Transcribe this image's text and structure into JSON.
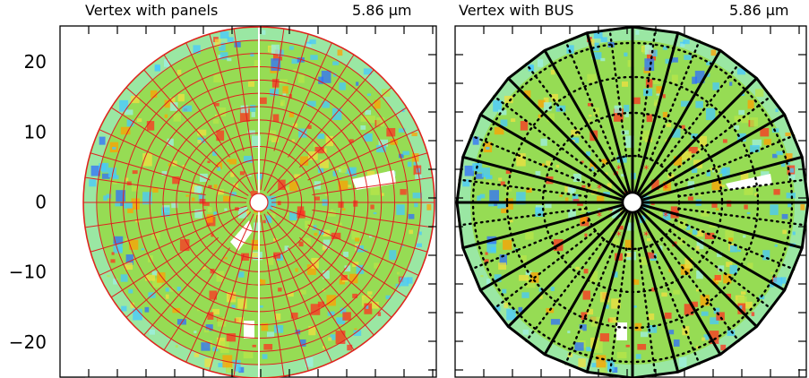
{
  "chart_data": [
    {
      "type": "heatmap",
      "title": "Vertex with panels",
      "annotation": "5.86 μm",
      "overlay": "panels",
      "colorbar": {
        "ylim": [
          -25,
          25
        ],
        "ticks": [
          20,
          10,
          0,
          -10,
          -20
        ],
        "tick_labels": [
          "20",
          "10",
          "0",
          "−10",
          "−20"
        ],
        "colors_bottom_to_top": [
          "#000000",
          "#0000c8",
          "#2f6fff",
          "#46c8ff",
          "#9ef0e4",
          "#7ee06a",
          "#b8e648",
          "#f0e040",
          "#ffa000",
          "#ff2020",
          "#ff00b0",
          "#b070ff",
          "#d8d0ff"
        ]
      },
      "panel_grid": {
        "rings": 12,
        "radial_lines": 44,
        "color": "#e02020"
      },
      "grid": true
    },
    {
      "type": "heatmap",
      "title": "Vertex with BUS",
      "annotation": "5.86 μm",
      "overlay": "BUS",
      "bus": {
        "radial_beams": 24,
        "dotted_rings": 4,
        "dotted_radials": 48,
        "markers": 8,
        "marker_color": "#ff2020"
      },
      "grid": true
    }
  ],
  "colors": {
    "background_green": "#96dc54",
    "panel_lines": "#e02020",
    "bus_lines": "#000000"
  }
}
